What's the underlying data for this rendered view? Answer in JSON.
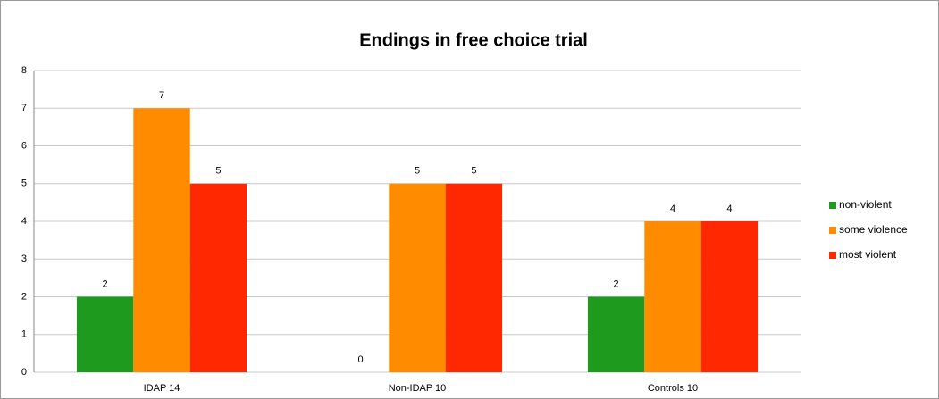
{
  "chart_data": {
    "type": "bar",
    "title": "Endings in free choice trial",
    "categories": [
      "IDAP 14",
      "Non-IDAP 10",
      "Controls 10"
    ],
    "series": [
      {
        "name": "non-violent",
        "color": "#1e9a1e",
        "values": [
          2,
          0,
          2
        ]
      },
      {
        "name": "some violence",
        "color": "#ff8c00",
        "values": [
          7,
          5,
          4
        ]
      },
      {
        "name": "most violent",
        "color": "#ff2800",
        "values": [
          5,
          5,
          4
        ]
      }
    ],
    "ylim": [
      0,
      8
    ],
    "yticks": [
      0,
      1,
      2,
      3,
      4,
      5,
      6,
      7,
      8
    ],
    "grid": true,
    "legend": "right"
  }
}
